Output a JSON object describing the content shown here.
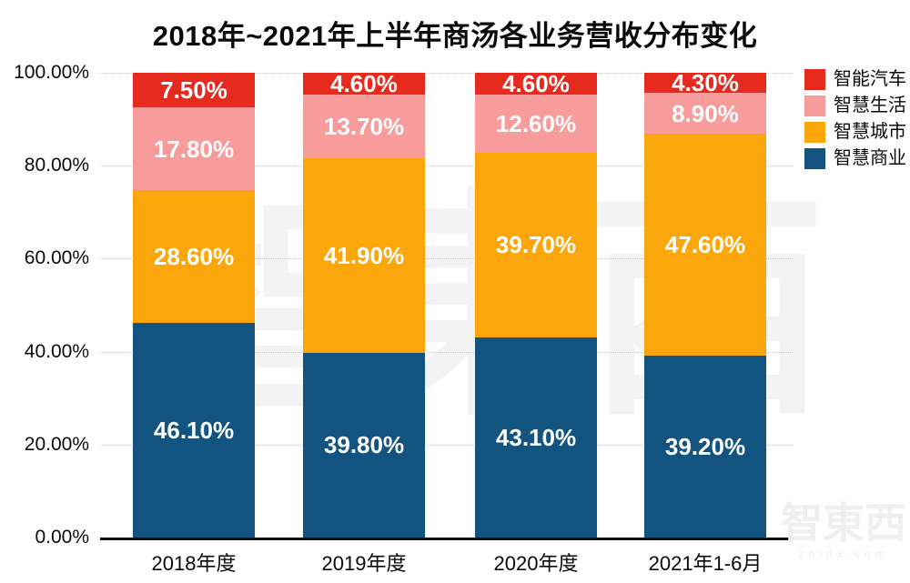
{
  "title": "2018年~2021年上半年商汤各业务营收分布变化",
  "watermark": {
    "logo_text": "智東西",
    "site": "zhidx.com"
  },
  "legend": [
    {
      "label": "智能汽车",
      "color": "#e62a1d"
    },
    {
      "label": "智慧生活",
      "color": "#f89b9b"
    },
    {
      "label": "智慧城市",
      "color": "#fba70b"
    },
    {
      "label": "智慧商业",
      "color": "#135380"
    }
  ],
  "chart_data": {
    "type": "bar",
    "stacked": true,
    "title": "2018年~2021年上半年商汤各业务营收分布变化",
    "categories": [
      "2018年度",
      "2019年度",
      "2020年度",
      "2021年1-6月"
    ],
    "series": [
      {
        "name": "智慧商业",
        "color": "#135380",
        "values": [
          46.1,
          39.8,
          43.1,
          39.2
        ]
      },
      {
        "name": "智慧城市",
        "color": "#fba70b",
        "values": [
          28.6,
          41.9,
          39.7,
          47.6
        ]
      },
      {
        "name": "智慧生活",
        "color": "#f89b9b",
        "values": [
          17.8,
          13.7,
          12.6,
          8.9
        ]
      },
      {
        "name": "智能汽车",
        "color": "#e62a1d",
        "values": [
          7.5,
          4.6,
          4.6,
          4.3
        ]
      }
    ],
    "value_label_format": "0.00%",
    "y_ticks": [
      "100.00%",
      "80.00%",
      "60.00%",
      "40.00%",
      "20.00%",
      "0.00%"
    ],
    "ylim": [
      0,
      100
    ],
    "grid": "horizontal-dotted",
    "legend_position": "top-right",
    "xlabel": "",
    "ylabel": ""
  }
}
